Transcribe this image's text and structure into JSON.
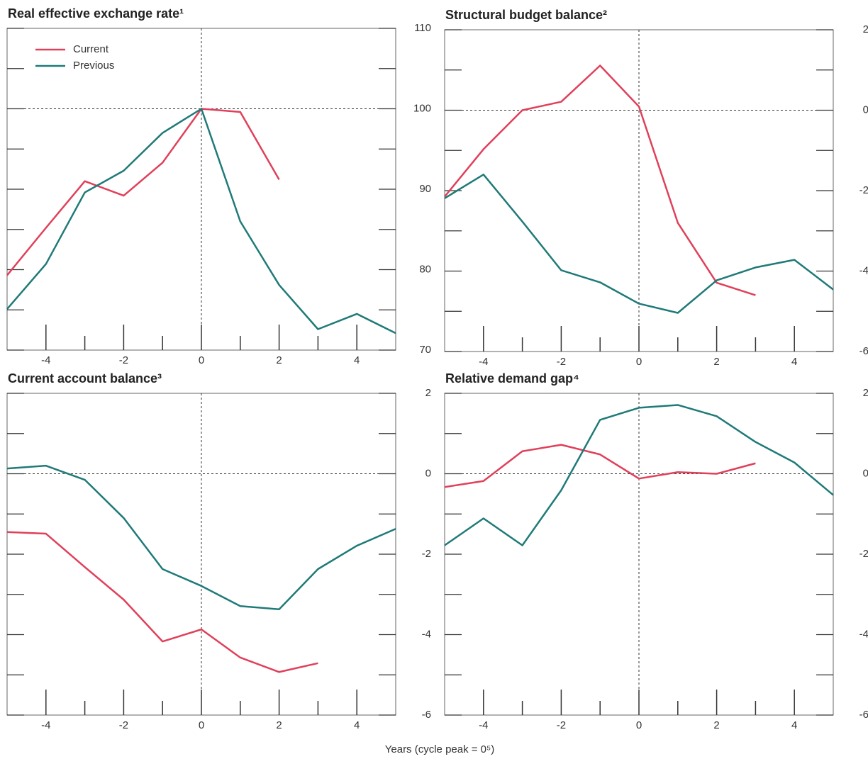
{
  "chart_data": [
    {
      "type": "line",
      "title": "Real effective exchange rate¹",
      "x": [
        -5,
        -4,
        -3,
        -2,
        -1,
        0,
        1,
        2,
        3,
        4,
        5
      ],
      "series": [
        {
          "name": "Current",
          "color": "#e0405a",
          "values": [
            79.3,
            85.2,
            91.0,
            89.2,
            93.3,
            100,
            99.6,
            91.2,
            null,
            null,
            null
          ]
        },
        {
          "name": "Previous",
          "color": "#1f7a78",
          "values": [
            75.1,
            80.7,
            89.6,
            92.3,
            97.0,
            100,
            86.0,
            78.1,
            72.6,
            74.5,
            72.1
          ]
        }
      ],
      "xlim": [
        -5,
        5
      ],
      "xticks": [
        -4,
        -2,
        0,
        2,
        4
      ],
      "xminor": [
        -3,
        -1,
        1,
        3
      ],
      "ylim": [
        70,
        110
      ],
      "yticks": [
        70,
        80,
        90,
        100,
        110
      ],
      "yminor": [
        75,
        85,
        95,
        105
      ],
      "hline": 100,
      "vline": 0,
      "legend": "upper left"
    },
    {
      "type": "line",
      "title": "Structural budget balance²",
      "x": [
        -5,
        -4,
        -3,
        -2,
        -1,
        0,
        1,
        2,
        3,
        4,
        5
      ],
      "series": [
        {
          "color": "#e0405a",
          "values": [
            -2.15,
            -0.97,
            0,
            0.21,
            1.11,
            0.09,
            -2.8,
            -4.29,
            -4.6,
            null,
            null
          ]
        },
        {
          "color": "#1f7a78",
          "values": [
            -2.19,
            -1.6,
            -2.77,
            -3.98,
            -4.28,
            -4.81,
            -5.04,
            -4.23,
            -3.91,
            -3.72,
            -4.46
          ]
        }
      ],
      "xlim": [
        -5,
        5
      ],
      "xticks": [
        -4,
        -2,
        0,
        2,
        4
      ],
      "xminor": [
        -3,
        -1,
        1,
        3
      ],
      "ylim": [
        -6,
        2
      ],
      "yticks": [
        -6,
        -4,
        -2,
        0,
        2
      ],
      "yminor": [
        -5,
        -3,
        -1,
        1
      ],
      "hline": 0,
      "vline": 0
    },
    {
      "type": "line",
      "title": "Current account balance³",
      "x": [
        -5,
        -4,
        -3,
        -2,
        -1,
        0,
        1,
        2,
        3,
        4,
        5
      ],
      "series": [
        {
          "color": "#e0405a",
          "values": [
            -1.45,
            -1.49,
            -2.32,
            -3.13,
            -4.17,
            -3.87,
            -4.57,
            -4.93,
            -4.71,
            null,
            null
          ]
        },
        {
          "color": "#1f7a78",
          "values": [
            0.13,
            0.2,
            -0.15,
            -1.1,
            -2.37,
            -2.79,
            -3.29,
            -3.37,
            -2.37,
            -1.79,
            -1.37
          ]
        }
      ],
      "xlim": [
        -5,
        5
      ],
      "xticks": [
        -4,
        -2,
        0,
        2,
        4
      ],
      "xminor": [
        -3,
        -1,
        1,
        3
      ],
      "ylim": [
        -6,
        2
      ],
      "yticks": [
        -6,
        -4,
        -2,
        0,
        2
      ],
      "yminor": [
        -5,
        -3,
        -1,
        1
      ],
      "hline": 0,
      "vline": 0
    },
    {
      "type": "line",
      "title": "Relative demand gap⁴",
      "x": [
        -5,
        -4,
        -3,
        -2,
        -1,
        0,
        1,
        2,
        3,
        4,
        5
      ],
      "series": [
        {
          "color": "#e0405a",
          "values": [
            -0.33,
            -0.18,
            0.56,
            0.72,
            0.48,
            -0.12,
            0.04,
            0,
            0.26,
            null,
            null
          ]
        },
        {
          "color": "#1f7a78",
          "values": [
            -1.78,
            -1.11,
            -1.78,
            -0.41,
            1.34,
            1.64,
            1.71,
            1.43,
            0.79,
            0.28,
            -0.53
          ]
        }
      ],
      "xlim": [
        -5,
        5
      ],
      "xticks": [
        -4,
        -2,
        0,
        2,
        4
      ],
      "xminor": [
        -3,
        -1,
        1,
        3
      ],
      "ylim": [
        -6,
        2
      ],
      "yticks": [
        -6,
        -4,
        -2,
        0,
        2
      ],
      "yminor": [
        -5,
        -3,
        -1,
        1
      ],
      "hline": 0,
      "vline": 0
    }
  ],
  "x_label": "Years (cycle peak = 0⁵)"
}
